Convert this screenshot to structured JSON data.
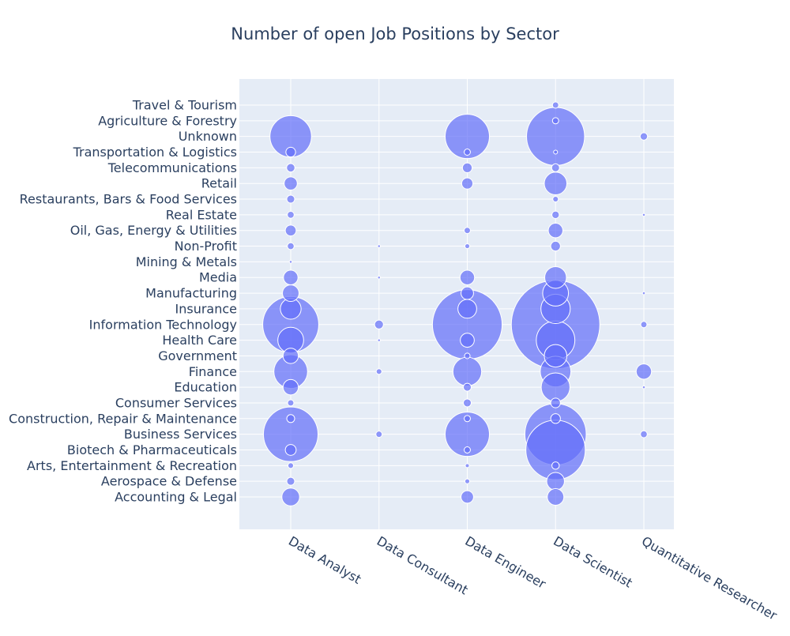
{
  "chart_data": {
    "type": "scatter",
    "title": "Number of open Job Positions by Sector",
    "xlabel": "",
    "ylabel": "",
    "marker_color": "#636efa",
    "plot_background": "#e5ecf6",
    "x_categories": [
      "Data Analyst",
      "Data Consultant",
      "Data Engineer",
      "Data Scientist",
      "Quantitative Researcher"
    ],
    "y_categories": [
      "Accounting & Legal",
      "Aerospace & Defense",
      "Arts, Entertainment & Recreation",
      "Biotech & Pharmaceuticals",
      "Business Services",
      "Construction, Repair & Maintenance",
      "Consumer Services",
      "Education",
      "Finance",
      "Government",
      "Health Care",
      "Information Technology",
      "Insurance",
      "Manufacturing",
      "Media",
      "Mining & Metals",
      "Non-Profit",
      "Oil, Gas, Energy & Utilities",
      "Real Estate",
      "Restaurants, Bars & Food Services",
      "Retail",
      "Telecommunications",
      "Transportation & Logistics",
      "Unknown",
      "Agriculture & Forestry",
      "Travel & Tourism"
    ],
    "size_scale_note": "bubble area proportional to count",
    "points": [
      {
        "x": "Data Analyst",
        "y": "Accounting & Legal",
        "count": 40
      },
      {
        "x": "Data Analyst",
        "y": "Aerospace & Defense",
        "count": 8
      },
      {
        "x": "Data Analyst",
        "y": "Arts, Entertainment & Recreation",
        "count": 4
      },
      {
        "x": "Data Analyst",
        "y": "Biotech & Pharmaceuticals",
        "count": 15
      },
      {
        "x": "Data Analyst",
        "y": "Business Services",
        "count": 380
      },
      {
        "x": "Data Analyst",
        "y": "Construction, Repair & Maintenance",
        "count": 8
      },
      {
        "x": "Data Analyst",
        "y": "Consumer Services",
        "count": 5
      },
      {
        "x": "Data Analyst",
        "y": "Education",
        "count": 30
      },
      {
        "x": "Data Analyst",
        "y": "Finance",
        "count": 145
      },
      {
        "x": "Data Analyst",
        "y": "Government",
        "count": 30
      },
      {
        "x": "Data Analyst",
        "y": "Health Care",
        "count": 85
      },
      {
        "x": "Data Analyst",
        "y": "Information Technology",
        "count": 400
      },
      {
        "x": "Data Analyst",
        "y": "Insurance",
        "count": 55
      },
      {
        "x": "Data Analyst",
        "y": "Manufacturing",
        "count": 35
      },
      {
        "x": "Data Analyst",
        "y": "Media",
        "count": 27
      },
      {
        "x": "Data Analyst",
        "y": "Mining & Metals",
        "count": 1
      },
      {
        "x": "Data Analyst",
        "y": "Non-Profit",
        "count": 6
      },
      {
        "x": "Data Analyst",
        "y": "Oil, Gas, Energy & Utilities",
        "count": 15
      },
      {
        "x": "Data Analyst",
        "y": "Real Estate",
        "count": 6
      },
      {
        "x": "Data Analyst",
        "y": "Restaurants, Bars & Food Services",
        "count": 8
      },
      {
        "x": "Data Analyst",
        "y": "Retail",
        "count": 22
      },
      {
        "x": "Data Analyst",
        "y": "Telecommunications",
        "count": 9
      },
      {
        "x": "Data Analyst",
        "y": "Transportation & Logistics",
        "count": 12
      },
      {
        "x": "Data Analyst",
        "y": "Unknown",
        "count": 220
      },
      {
        "x": "Data Consultant",
        "y": "Business Services",
        "count": 5
      },
      {
        "x": "Data Consultant",
        "y": "Finance",
        "count": 4
      },
      {
        "x": "Data Consultant",
        "y": "Health Care",
        "count": 1
      },
      {
        "x": "Data Consultant",
        "y": "Information Technology",
        "count": 10
      },
      {
        "x": "Data Consultant",
        "y": "Media",
        "count": 1
      },
      {
        "x": "Data Consultant",
        "y": "Non-Profit",
        "count": 1
      },
      {
        "x": "Data Engineer",
        "y": "Accounting & Legal",
        "count": 20
      },
      {
        "x": "Data Engineer",
        "y": "Aerospace & Defense",
        "count": 3
      },
      {
        "x": "Data Engineer",
        "y": "Arts, Entertainment & Recreation",
        "count": 2
      },
      {
        "x": "Data Engineer",
        "y": "Biotech & Pharmaceuticals",
        "count": 5
      },
      {
        "x": "Data Engineer",
        "y": "Business Services",
        "count": 250
      },
      {
        "x": "Data Engineer",
        "y": "Construction, Repair & Maintenance",
        "count": 5
      },
      {
        "x": "Data Engineer",
        "y": "Consumer Services",
        "count": 8
      },
      {
        "x": "Data Engineer",
        "y": "Education",
        "count": 8
      },
      {
        "x": "Data Engineer",
        "y": "Finance",
        "count": 105
      },
      {
        "x": "Data Engineer",
        "y": "Government",
        "count": 4
      },
      {
        "x": "Data Engineer",
        "y": "Health Care",
        "count": 25
      },
      {
        "x": "Data Engineer",
        "y": "Information Technology",
        "count": 620
      },
      {
        "x": "Data Engineer",
        "y": "Insurance",
        "count": 45
      },
      {
        "x": "Data Engineer",
        "y": "Manufacturing",
        "count": 20
      },
      {
        "x": "Data Engineer",
        "y": "Media",
        "count": 27
      },
      {
        "x": "Data Engineer",
        "y": "Non-Profit",
        "count": 3
      },
      {
        "x": "Data Engineer",
        "y": "Oil, Gas, Energy & Utilities",
        "count": 5
      },
      {
        "x": "Data Engineer",
        "y": "Retail",
        "count": 16
      },
      {
        "x": "Data Engineer",
        "y": "Telecommunications",
        "count": 12
      },
      {
        "x": "Data Engineer",
        "y": "Transportation & Logistics",
        "count": 5
      },
      {
        "x": "Data Engineer",
        "y": "Unknown",
        "count": 250
      },
      {
        "x": "Data Scientist",
        "y": "Accounting & Legal",
        "count": 35
      },
      {
        "x": "Data Scientist",
        "y": "Aerospace & Defense",
        "count": 40
      },
      {
        "x": "Data Scientist",
        "y": "Arts, Entertainment & Recreation",
        "count": 7
      },
      {
        "x": "Data Scientist",
        "y": "Biotech & Pharmaceuticals",
        "count": 450
      },
      {
        "x": "Data Scientist",
        "y": "Business Services",
        "count": 480
      },
      {
        "x": "Data Scientist",
        "y": "Construction, Repair & Maintenance",
        "count": 12
      },
      {
        "x": "Data Scientist",
        "y": "Consumer Services",
        "count": 12
      },
      {
        "x": "Data Scientist",
        "y": "Education",
        "count": 105
      },
      {
        "x": "Data Scientist",
        "y": "Finance",
        "count": 120
      },
      {
        "x": "Data Scientist",
        "y": "Government",
        "count": 65
      },
      {
        "x": "Data Scientist",
        "y": "Health Care",
        "count": 190
      },
      {
        "x": "Data Scientist",
        "y": "Information Technology",
        "count": 1000
      },
      {
        "x": "Data Scientist",
        "y": "Insurance",
        "count": 110
      },
      {
        "x": "Data Scientist",
        "y": "Manufacturing",
        "count": 85
      },
      {
        "x": "Data Scientist",
        "y": "Media",
        "count": 60
      },
      {
        "x": "Data Scientist",
        "y": "Non-Profit",
        "count": 12
      },
      {
        "x": "Data Scientist",
        "y": "Oil, Gas, Energy & Utilities",
        "count": 27
      },
      {
        "x": "Data Scientist",
        "y": "Real Estate",
        "count": 7
      },
      {
        "x": "Data Scientist",
        "y": "Restaurants, Bars & Food Services",
        "count": 4
      },
      {
        "x": "Data Scientist",
        "y": "Retail",
        "count": 65
      },
      {
        "x": "Data Scientist",
        "y": "Telecommunications",
        "count": 8
      },
      {
        "x": "Data Scientist",
        "y": "Transportation & Logistics",
        "count": 2
      },
      {
        "x": "Data Scientist",
        "y": "Unknown",
        "count": 430
      },
      {
        "x": "Data Scientist",
        "y": "Agriculture & Forestry",
        "count": 5
      },
      {
        "x": "Data Scientist",
        "y": "Travel & Tourism",
        "count": 5
      },
      {
        "x": "Quantitative Researcher",
        "y": "Business Services",
        "count": 6
      },
      {
        "x": "Quantitative Researcher",
        "y": "Education",
        "count": 1
      },
      {
        "x": "Quantitative Researcher",
        "y": "Finance",
        "count": 30
      },
      {
        "x": "Quantitative Researcher",
        "y": "Information Technology",
        "count": 5
      },
      {
        "x": "Quantitative Researcher",
        "y": "Manufacturing",
        "count": 1
      },
      {
        "x": "Quantitative Researcher",
        "y": "Real Estate",
        "count": 1
      },
      {
        "x": "Quantitative Researcher",
        "y": "Unknown",
        "count": 7
      }
    ]
  }
}
